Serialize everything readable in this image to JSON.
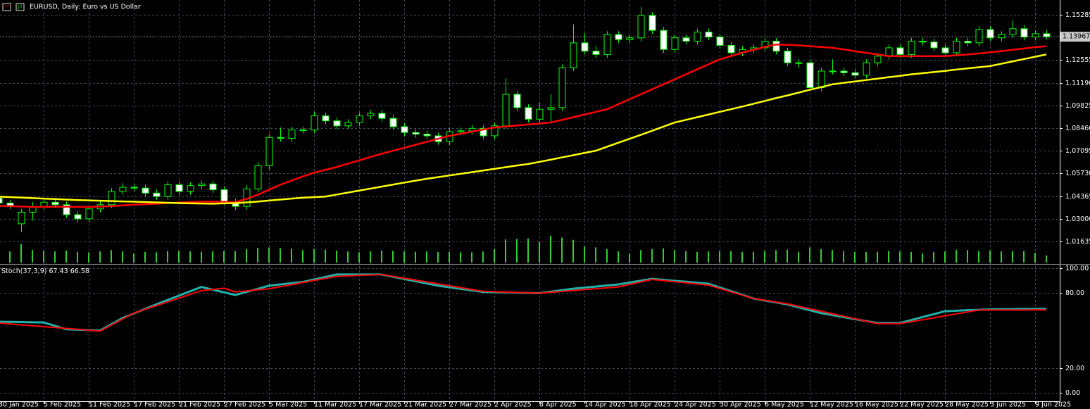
{
  "chart_data": [
    {
      "type": "candlestick",
      "title": "EURUSD, Daily:  Euro vs US Dollar",
      "categories": [
        "30 Jan 2025",
        null,
        null,
        null,
        "5 Feb 2025",
        null,
        null,
        null,
        "11 Feb 2025",
        null,
        null,
        null,
        "17 Feb 2025",
        null,
        null,
        null,
        "21 Feb 2025",
        null,
        null,
        null,
        "27 Feb 2025",
        null,
        null,
        null,
        "5 Mar 2025",
        null,
        null,
        null,
        "11 Mar 2025",
        null,
        null,
        null,
        "17 Mar 2025",
        null,
        null,
        null,
        "21 Mar 2025",
        null,
        null,
        null,
        "27 Mar 2025",
        null,
        null,
        null,
        "2 Apr 2025",
        null,
        null,
        null,
        "8 Apr 2025",
        null,
        null,
        null,
        "14 Apr 2025",
        null,
        null,
        null,
        "18 Apr 2025",
        null,
        null,
        null,
        "24 Apr 2025",
        null,
        null,
        null,
        "30 Apr 2025",
        null,
        null,
        null,
        "6 May 2025",
        null,
        null,
        null,
        "12 May 2025",
        null,
        null,
        null,
        "16 May 2025",
        null,
        null,
        null,
        "22 May 2025",
        null,
        null,
        null,
        "28 May 2025",
        null,
        null,
        null,
        "3 Jun 2025",
        null,
        null,
        null,
        "9 Jun 2025",
        null
      ],
      "open": [
        1.0425,
        1.0395,
        1.027,
        1.034,
        1.0375,
        1.04,
        1.0385,
        1.0325,
        1.03,
        1.036,
        1.0385,
        1.0465,
        1.049,
        1.0485,
        1.0455,
        1.0435,
        1.0505,
        1.0465,
        1.05,
        1.051,
        1.0475,
        1.04,
        1.0375,
        1.048,
        1.062,
        1.079,
        1.0785,
        1.0835,
        1.0835,
        1.092,
        1.089,
        1.086,
        1.088,
        1.092,
        1.0935,
        1.0905,
        1.0855,
        1.082,
        1.081,
        1.08,
        1.0765,
        1.0825,
        1.083,
        1.0845,
        1.08,
        1.086,
        1.105,
        1.097,
        1.09,
        1.096,
        1.097,
        1.121,
        1.136,
        1.131,
        1.129,
        1.141,
        1.138,
        1.139,
        1.1525,
        1.1435,
        1.132,
        1.139,
        1.137,
        1.1425,
        1.1395,
        1.1345,
        1.13,
        1.132,
        1.133,
        1.137,
        1.131,
        1.124,
        1.124,
        1.109,
        1.119,
        1.119,
        1.118,
        1.1165,
        1.124,
        1.128,
        1.133,
        1.129,
        1.137,
        1.1365,
        1.133,
        1.13,
        1.137,
        1.136,
        1.144,
        1.139,
        1.141,
        1.1445,
        1.1395,
        1.1415
      ],
      "high": [
        1.0445,
        1.0415,
        1.036,
        1.04,
        1.042,
        1.042,
        1.0405,
        1.0345,
        1.038,
        1.0405,
        1.0485,
        1.0515,
        1.051,
        1.0505,
        1.0475,
        1.0525,
        1.0525,
        1.052,
        1.053,
        1.053,
        1.0495,
        1.042,
        1.05,
        1.064,
        1.081,
        1.085,
        1.0855,
        1.0855,
        1.0945,
        1.094,
        1.091,
        1.09,
        1.094,
        1.0955,
        1.0955,
        1.0925,
        1.0875,
        1.084,
        1.083,
        1.082,
        1.0845,
        1.085,
        1.0865,
        1.0865,
        1.088,
        1.1145,
        1.107,
        1.099,
        1.1,
        1.105,
        1.123,
        1.147,
        1.142,
        1.134,
        1.143,
        1.143,
        1.141,
        1.1575,
        1.1545,
        1.1455,
        1.141,
        1.141,
        1.1445,
        1.1445,
        1.1415,
        1.1365,
        1.134,
        1.135,
        1.139,
        1.139,
        1.133,
        1.126,
        1.126,
        1.121,
        1.126,
        1.121,
        1.12,
        1.126,
        1.13,
        1.135,
        1.135,
        1.139,
        1.139,
        1.1385,
        1.135,
        1.139,
        1.139,
        1.146,
        1.146,
        1.143,
        1.1495,
        1.1465,
        1.1435,
        1.1435
      ],
      "low": [
        1.0375,
        1.036,
        1.022,
        1.029,
        1.0355,
        1.0365,
        1.0305,
        1.028,
        1.028,
        1.034,
        1.0365,
        1.0445,
        1.0465,
        1.0435,
        1.0415,
        1.0415,
        1.0445,
        1.0445,
        1.048,
        1.0455,
        1.038,
        1.0355,
        1.0355,
        1.046,
        1.06,
        1.0765,
        1.0765,
        1.0815,
        1.0815,
        1.087,
        1.084,
        1.084,
        1.086,
        1.09,
        1.0885,
        1.0835,
        1.08,
        1.079,
        1.078,
        1.0745,
        1.0745,
        1.0805,
        1.081,
        1.078,
        1.078,
        1.084,
        1.095,
        1.088,
        1.088,
        1.088,
        1.095,
        1.119,
        1.129,
        1.127,
        1.127,
        1.136,
        1.136,
        1.137,
        1.1415,
        1.13,
        1.13,
        1.135,
        1.135,
        1.1375,
        1.1325,
        1.128,
        1.128,
        1.13,
        1.131,
        1.129,
        1.122,
        1.121,
        1.107,
        1.107,
        1.117,
        1.116,
        1.1145,
        1.1145,
        1.122,
        1.126,
        1.127,
        1.127,
        1.1345,
        1.131,
        1.128,
        1.128,
        1.134,
        1.134,
        1.137,
        1.137,
        1.139,
        1.1375,
        1.1375,
        1.138
      ],
      "close": [
        1.0395,
        1.038,
        1.034,
        1.0375,
        1.04,
        1.0385,
        1.0325,
        1.03,
        1.036,
        1.0385,
        1.0465,
        1.049,
        1.0485,
        1.0455,
        1.0435,
        1.0505,
        1.0465,
        1.05,
        1.051,
        1.0475,
        1.04,
        1.0375,
        1.048,
        1.062,
        1.079,
        1.0785,
        1.0835,
        1.0835,
        1.092,
        1.089,
        1.086,
        1.088,
        1.092,
        1.0935,
        1.0905,
        1.0855,
        1.082,
        1.081,
        1.08,
        1.0765,
        1.0825,
        1.083,
        1.0845,
        1.08,
        1.086,
        1.105,
        1.097,
        1.09,
        1.096,
        1.097,
        1.121,
        1.136,
        1.131,
        1.129,
        1.141,
        1.138,
        1.139,
        1.1525,
        1.1435,
        1.132,
        1.139,
        1.137,
        1.1425,
        1.1395,
        1.1345,
        1.13,
        1.132,
        1.133,
        1.137,
        1.131,
        1.124,
        1.124,
        1.109,
        1.119,
        1.119,
        1.118,
        1.1165,
        1.124,
        1.128,
        1.133,
        1.129,
        1.137,
        1.1365,
        1.133,
        1.13,
        1.137,
        1.136,
        1.144,
        1.139,
        1.141,
        1.1445,
        1.1395,
        1.1415,
        1.1397
      ],
      "bull_color": "#000000",
      "bear_color": "#ffffff",
      "outline_color": "#00ff00",
      "overlays": [
        {
          "color": "#ff0000",
          "values": [
            1.0378,
            1.0376,
            1.0374,
            1.0372,
            1.0372,
            1.0373,
            1.0373,
            1.0372,
            1.0372,
            1.0374,
            1.0377,
            1.0381,
            1.0385,
            1.0388,
            1.0391,
            1.0395,
            1.0398,
            1.0401,
            1.0403,
            1.0404,
            1.0402,
            1.04,
            1.042,
            1.0445,
            1.0475,
            1.0505,
            1.053,
            1.0555,
            1.0578,
            1.0595,
            1.0612,
            1.0632,
            1.0652,
            1.0672,
            1.0692,
            1.071,
            1.0728,
            1.0746,
            1.0764,
            1.0782,
            1.08,
            1.0812,
            1.0825,
            1.0838,
            1.085,
            1.0856,
            1.0862,
            1.0868,
            1.0874,
            1.088,
            1.0896,
            1.0912,
            1.0928,
            1.0944,
            1.096,
            1.099,
            1.102,
            1.105,
            1.108,
            1.111,
            1.114,
            1.117,
            1.12,
            1.123,
            1.126,
            1.128,
            1.13,
            1.1318,
            1.1335,
            1.135,
            1.1348,
            1.1345,
            1.134,
            1.1335,
            1.133,
            1.132,
            1.131,
            1.13,
            1.129,
            1.128,
            1.128,
            1.128,
            1.128,
            1.128,
            1.128,
            1.1285,
            1.129,
            1.1296,
            1.1303,
            1.131,
            1.1318,
            1.1326,
            1.1334,
            1.134
          ]
        },
        {
          "color": "#ffff00",
          "values": [
            1.0434,
            1.0431,
            1.0428,
            1.0425,
            1.0422,
            1.0419,
            1.0416,
            1.0413,
            1.0411,
            1.0409,
            1.0407,
            1.0405,
            1.0403,
            1.0401,
            1.0399,
            1.0397,
            1.0395,
            1.0393,
            1.0392,
            1.0391,
            1.0393,
            1.0395,
            1.0399,
            1.0404,
            1.041,
            1.0416,
            1.0422,
            1.0427,
            1.0431,
            1.0434,
            1.0446,
            1.0458,
            1.047,
            1.0482,
            1.0494,
            1.0506,
            1.0518,
            1.053,
            1.0541,
            1.0551,
            1.0561,
            1.0571,
            1.0581,
            1.0591,
            1.0601,
            1.0611,
            1.0621,
            1.063,
            1.0643,
            1.0656,
            1.067,
            1.0683,
            1.0697,
            1.071,
            1.0734,
            1.0758,
            1.0782,
            1.0806,
            1.083,
            1.0855,
            1.088,
            1.0896,
            1.0912,
            1.0928,
            1.0944,
            1.096,
            1.0976,
            1.0993,
            1.101,
            1.1027,
            1.1043,
            1.106,
            1.1077,
            1.1093,
            1.111,
            1.1119,
            1.1127,
            1.1136,
            1.1144,
            1.1153,
            1.1161,
            1.117,
            1.1177,
            1.1184,
            1.1191,
            1.1199,
            1.1206,
            1.1213,
            1.122,
            1.1234,
            1.1248,
            1.1262,
            1.1276,
            1.129
          ]
        }
      ],
      "volume": {
        "color": "#32cd32",
        "values": [
          130000,
          125000,
          210000,
          140000,
          130000,
          125000,
          135000,
          120000,
          115000,
          125000,
          140000,
          125000,
          100000,
          120000,
          115000,
          130000,
          130000,
          125000,
          120000,
          125000,
          130000,
          130000,
          150000,
          165000,
          170000,
          160000,
          155000,
          140000,
          150000,
          145000,
          135000,
          125000,
          115000,
          125000,
          135000,
          130000,
          125000,
          120000,
          125000,
          120000,
          120000,
          115000,
          115000,
          125000,
          150000,
          260000,
          265000,
          270000,
          230000,
          300000,
          280000,
          255000,
          180000,
          170000,
          150000,
          125000,
          100000,
          140000,
          150000,
          160000,
          140000,
          130000,
          120000,
          125000,
          130000,
          130000,
          120000,
          120000,
          130000,
          140000,
          145000,
          120000,
          170000,
          150000,
          140000,
          130000,
          120000,
          120000,
          120000,
          130000,
          125000,
          120000,
          100000,
          120000,
          125000,
          140000,
          140000,
          130000,
          135000,
          125000,
          130000,
          130000,
          110000,
          80000
        ]
      },
      "last_price": 1.13967,
      "ylim": [
        1.0028,
        1.1618
      ],
      "yticks": [
        1.01635,
        {
          "value": 1.03,
          "label": "1.03000"
        },
        1.04365,
        {
          "value": 1.0573,
          "label": "1.05730"
        },
        1.07095,
        {
          "value": 1.0846,
          "label": "1.08460"
        },
        1.09825,
        {
          "value": 1.1119,
          "label": "1.11190"
        },
        1.12555,
        1.15285
      ],
      "grid": true
    },
    {
      "type": "line",
      "title": "Stoch(37,3,9)",
      "series": [
        {
          "color": "#20b2aa",
          "values": [
            57,
            56.9,
            56.8,
            56.6,
            56.5,
            53.8,
            51,
            50.7,
            50.3,
            50,
            55,
            60,
            63.7,
            67.3,
            71,
            74.5,
            78,
            81.5,
            85,
            82.8,
            80.7,
            78.5,
            81,
            83.5,
            86,
            87,
            88,
            89,
            91,
            93,
            95,
            95,
            95,
            95,
            95,
            93.2,
            91.4,
            89.6,
            87.8,
            86,
            84.8,
            83.5,
            82.3,
            81,
            80.8,
            80.6,
            80.4,
            80.2,
            80,
            81.2,
            82.4,
            83.6,
            84.5,
            85.3,
            86.2,
            87,
            88.5,
            90,
            91.5,
            90.7,
            89.9,
            89.2,
            88.4,
            87.6,
            84.6,
            81.7,
            78.7,
            75.7,
            74.1,
            72.6,
            71,
            68.7,
            66.3,
            64,
            62.4,
            60.8,
            59.2,
            57.6,
            56,
            56,
            56,
            58.4,
            60.8,
            63.1,
            65.5,
            65.9,
            66.3,
            66.6,
            67,
            67.1,
            67.2,
            67.3,
            67.3,
            67.43
          ]
        },
        {
          "color": "#ff0000",
          "values": [
            56,
            55.3,
            54.6,
            53.8,
            53.1,
            52.4,
            51.7,
            51,
            50.2,
            49.5,
            54.3,
            59.2,
            64,
            67,
            70,
            73,
            76,
            79,
            82,
            83,
            84,
            81,
            81.8,
            82.7,
            83.5,
            85.2,
            86.8,
            88.5,
            90.2,
            91.8,
            93.5,
            93.9,
            94.3,
            94.6,
            95,
            93.5,
            92,
            90.5,
            89,
            87.5,
            86,
            84.5,
            83,
            81.5,
            81.2,
            80.9,
            80.6,
            80.3,
            80,
            80.7,
            81.4,
            82.1,
            82.9,
            83.6,
            84.3,
            85,
            87,
            89,
            91,
            90.1,
            89.2,
            88.3,
            87.4,
            86.5,
            83.8,
            81.1,
            78.4,
            75.7,
            74.3,
            72.9,
            71.5,
            69.5,
            67.5,
            65.5,
            63.5,
            61.5,
            59.5,
            57.5,
            55.5,
            55.5,
            55.5,
            57.1,
            58.6,
            60.2,
            61.8,
            63.4,
            64.9,
            66.5,
            66.5,
            66.5,
            66.5,
            66.5,
            66.6,
            66.58
          ]
        }
      ],
      "ylim": [
        -6.8,
        102.3
      ],
      "yticks": [
        {
          "value": 100,
          "label": "100.00"
        },
        {
          "value": 80,
          "label": "80.00"
        },
        {
          "value": 20,
          "label": "20.00"
        },
        {
          "value": 0,
          "label": "0.00"
        }
      ],
      "grid": true
    }
  ]
}
